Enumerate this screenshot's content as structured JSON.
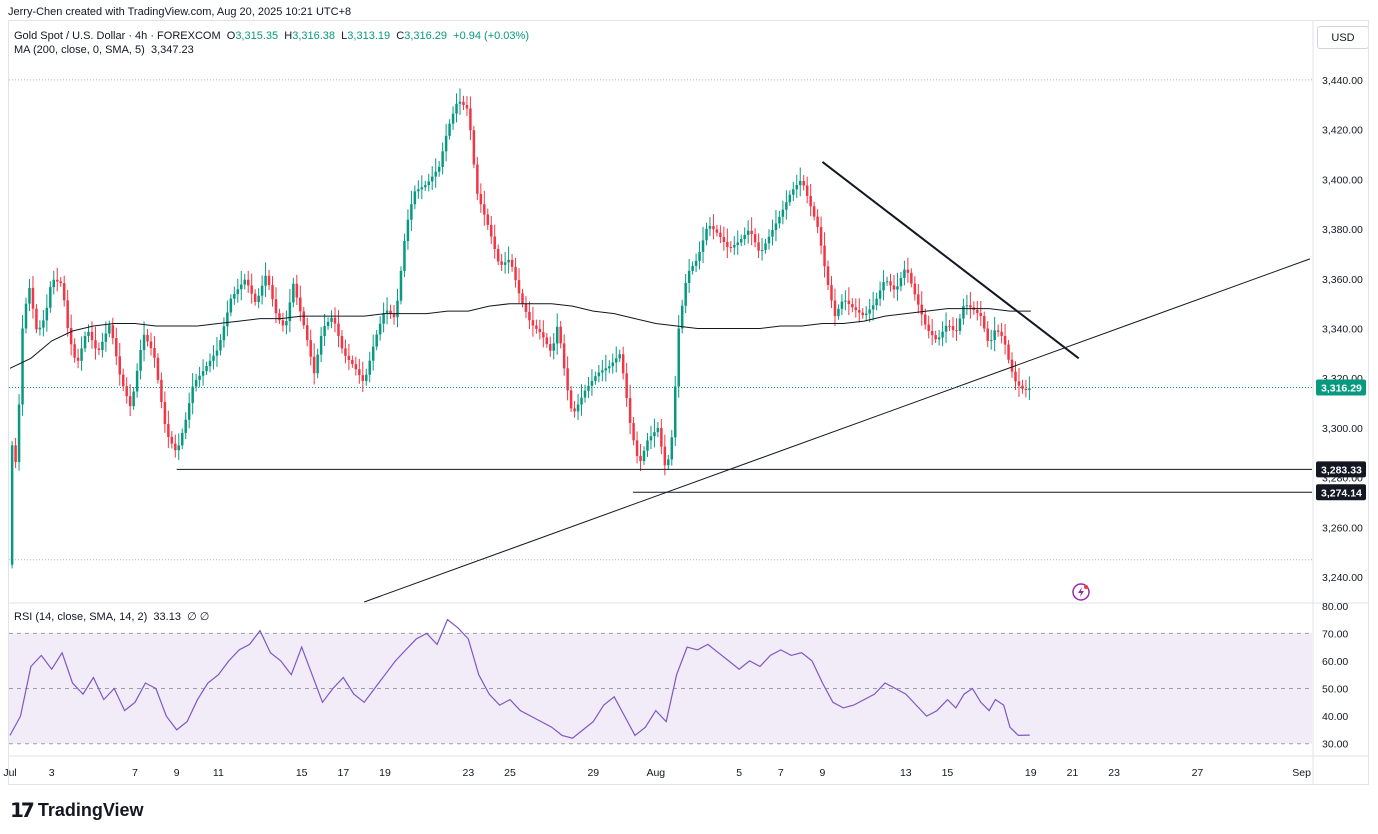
{
  "header": {
    "credit": "Jerry-Chen created with TradingView.com, Aug 20, 2025 10:21 UTC+8"
  },
  "symbol": {
    "name": "Gold Spot / U.S. Dollar · 4h · FOREXCOM",
    "o_label": "O",
    "o": "3,315.35",
    "h_label": "H",
    "h": "3,316.38",
    "l_label": "L",
    "l": "3,313.19",
    "c_label": "C",
    "c": "3,316.29",
    "change": "+0.94 (+0.03%)"
  },
  "ma_legend": {
    "label": "MA (200, close, 0, SMA, 5)",
    "value": "3,347.23"
  },
  "rsi_legend": {
    "label": "RSI (14, close, SMA, 14, 2)",
    "value": "33.13",
    "extra": "∅ ∅"
  },
  "currency_button": "USD",
  "brand": "TradingView",
  "colors": {
    "up": "#089981",
    "down": "#f23645",
    "ma": "#131722",
    "rsi": "#7e57c2",
    "rsi_band": "#ede7f6",
    "line": "#131722"
  },
  "chart_data": [
    {
      "type": "candlestick",
      "title": "Gold Spot / U.S. Dollar · 4h · FOREXCOM",
      "y_ticks": [
        3240,
        3260,
        3280,
        3300,
        3320,
        3340,
        3360,
        3380,
        3400,
        3420,
        3440
      ],
      "y_tick_labels": [
        "3,240.00",
        "3,260.00",
        "3,280.00",
        "3,300.00",
        "3,320.00",
        "3,340.00",
        "3,360.00",
        "3,380.00",
        "3,400.00",
        "3,420.00",
        "3,440.00"
      ],
      "ylim": [
        3230,
        3448
      ],
      "x_ticks": [
        {
          "label": "Jul",
          "day": 1
        },
        {
          "label": "3",
          "day": 3
        },
        {
          "label": "7",
          "day": 7
        },
        {
          "label": "9",
          "day": 9
        },
        {
          "label": "11",
          "day": 11
        },
        {
          "label": "15",
          "day": 15
        },
        {
          "label": "17",
          "day": 17
        },
        {
          "label": "19",
          "day": 19
        },
        {
          "label": "23",
          "day": 23
        },
        {
          "label": "25",
          "day": 25
        },
        {
          "label": "29",
          "day": 29
        },
        {
          "label": "Aug",
          "day": 32
        },
        {
          "label": "5",
          "day": 36
        },
        {
          "label": "7",
          "day": 38
        },
        {
          "label": "9",
          "day": 40
        },
        {
          "label": "13",
          "day": 44
        },
        {
          "label": "15",
          "day": 46
        },
        {
          "label": "19",
          "day": 50
        },
        {
          "label": "21",
          "day": 52
        },
        {
          "label": "23",
          "day": 54
        },
        {
          "label": "27",
          "day": 58
        },
        {
          "label": "Sep",
          "day": 63
        }
      ],
      "xlim_days": [
        0.95,
        63.5
      ],
      "price_path": [
        [
          0.95,
          3245
        ],
        [
          1.05,
          3295
        ],
        [
          1.3,
          3285
        ],
        [
          1.6,
          3340
        ],
        [
          1.9,
          3358
        ],
        [
          2.3,
          3338
        ],
        [
          2.7,
          3345
        ],
        [
          3.0,
          3360
        ],
        [
          3.5,
          3358
        ],
        [
          3.8,
          3338
        ],
        [
          4.2,
          3325
        ],
        [
          4.7,
          3340
        ],
        [
          5.2,
          3330
        ],
        [
          5.8,
          3342
        ],
        [
          6.3,
          3320
        ],
        [
          6.8,
          3308
        ],
        [
          7.4,
          3338
        ],
        [
          7.9,
          3330
        ],
        [
          8.5,
          3298
        ],
        [
          9.0,
          3290
        ],
        [
          9.4,
          3302
        ],
        [
          9.8,
          3318
        ],
        [
          10.2,
          3322
        ],
        [
          11.0,
          3332
        ],
        [
          11.6,
          3352
        ],
        [
          12.3,
          3360
        ],
        [
          12.8,
          3350
        ],
        [
          13.3,
          3362
        ],
        [
          13.8,
          3345
        ],
        [
          14.2,
          3340
        ],
        [
          14.6,
          3358
        ],
        [
          15.2,
          3338
        ],
        [
          15.6,
          3322
        ],
        [
          16.0,
          3340
        ],
        [
          16.5,
          3345
        ],
        [
          17.0,
          3330
        ],
        [
          17.5,
          3325
        ],
        [
          18.0,
          3318
        ],
        [
          18.5,
          3335
        ],
        [
          19.0,
          3348
        ],
        [
          19.5,
          3344
        ],
        [
          20.0,
          3380
        ],
        [
          20.4,
          3395
        ],
        [
          21.0,
          3398
        ],
        [
          21.6,
          3405
        ],
        [
          22.0,
          3420
        ],
        [
          22.5,
          3432
        ],
        [
          23.0,
          3428
        ],
        [
          23.4,
          3395
        ],
        [
          24.0,
          3380
        ],
        [
          24.5,
          3365
        ],
        [
          25.0,
          3368
        ],
        [
          25.5,
          3352
        ],
        [
          26.0,
          3342
        ],
        [
          26.5,
          3338
        ],
        [
          27.0,
          3330
        ],
        [
          27.3,
          3342
        ],
        [
          27.7,
          3318
        ],
        [
          28.0,
          3305
        ],
        [
          28.6,
          3315
        ],
        [
          29.2,
          3322
        ],
        [
          29.8,
          3325
        ],
        [
          30.3,
          3330
        ],
        [
          30.8,
          3300
        ],
        [
          31.2,
          3285
        ],
        [
          31.6,
          3295
        ],
        [
          32.1,
          3300
        ],
        [
          32.5,
          3282
        ],
        [
          32.8,
          3298
        ],
        [
          33.1,
          3340
        ],
        [
          33.5,
          3362
        ],
        [
          34.0,
          3368
        ],
        [
          34.5,
          3382
        ],
        [
          35.0,
          3378
        ],
        [
          35.5,
          3372
        ],
        [
          36.0,
          3375
        ],
        [
          36.5,
          3380
        ],
        [
          37.0,
          3370
        ],
        [
          37.5,
          3378
        ],
        [
          38.0,
          3386
        ],
        [
          38.5,
          3395
        ],
        [
          39.0,
          3400
        ],
        [
          39.4,
          3390
        ],
        [
          39.8,
          3380
        ],
        [
          40.2,
          3360
        ],
        [
          40.6,
          3345
        ],
        [
          41.0,
          3352
        ],
        [
          41.5,
          3348
        ],
        [
          42.0,
          3345
        ],
        [
          42.5,
          3350
        ],
        [
          43.0,
          3360
        ],
        [
          43.5,
          3355
        ],
        [
          44.0,
          3365
        ],
        [
          44.5,
          3352
        ],
        [
          45.0,
          3340
        ],
        [
          45.5,
          3335
        ],
        [
          46.0,
          3342
        ],
        [
          46.4,
          3338
        ],
        [
          46.8,
          3350
        ],
        [
          47.2,
          3348
        ],
        [
          47.6,
          3345
        ],
        [
          48.0,
          3333
        ],
        [
          48.3,
          3340
        ],
        [
          48.7,
          3336
        ],
        [
          49.0,
          3325
        ],
        [
          49.3,
          3318
        ],
        [
          49.7,
          3315
        ],
        [
          49.95,
          3316
        ]
      ],
      "ma200_path": [
        [
          1.0,
          3324
        ],
        [
          2.0,
          3328
        ],
        [
          3.0,
          3335
        ],
        [
          4.0,
          3339
        ],
        [
          5.0,
          3341
        ],
        [
          6.0,
          3342
        ],
        [
          7.0,
          3342
        ],
        [
          8.0,
          3341
        ],
        [
          9.0,
          3341
        ],
        [
          10.0,
          3341
        ],
        [
          11.0,
          3342
        ],
        [
          12.0,
          3343
        ],
        [
          13.0,
          3344
        ],
        [
          14.0,
          3344
        ],
        [
          15.0,
          3345
        ],
        [
          16.0,
          3345
        ],
        [
          17.0,
          3345
        ],
        [
          18.0,
          3345
        ],
        [
          19.0,
          3346
        ],
        [
          20.0,
          3346
        ],
        [
          21.0,
          3346
        ],
        [
          22.0,
          3347
        ],
        [
          23.0,
          3347
        ],
        [
          24.0,
          3349
        ],
        [
          25.0,
          3350
        ],
        [
          26.0,
          3350
        ],
        [
          27.0,
          3350
        ],
        [
          28.0,
          3349
        ],
        [
          29.0,
          3347
        ],
        [
          30.0,
          3346
        ],
        [
          31.0,
          3344
        ],
        [
          32.0,
          3342
        ],
        [
          33.0,
          3341
        ],
        [
          34.0,
          3340
        ],
        [
          35.0,
          3340
        ],
        [
          36.0,
          3340
        ],
        [
          37.0,
          3340
        ],
        [
          38.0,
          3341
        ],
        [
          39.0,
          3341
        ],
        [
          40.0,
          3342
        ],
        [
          41.0,
          3342
        ],
        [
          42.0,
          3343
        ],
        [
          43.0,
          3345
        ],
        [
          44.0,
          3346
        ],
        [
          45.0,
          3347
        ],
        [
          46.0,
          3348
        ],
        [
          47.0,
          3348
        ],
        [
          48.0,
          3348
        ],
        [
          49.0,
          3347
        ],
        [
          50.0,
          3347
        ]
      ],
      "horizontal_levels": [
        {
          "value": 3283.33,
          "label": "3,283.33",
          "from_day": 9.0
        },
        {
          "value": 3274.14,
          "label": "3,274.14",
          "from_day": 30.9
        }
      ],
      "dotted_levels": [
        3440,
        3247
      ],
      "trendlines": [
        {
          "name": "descending-resistance",
          "from": [
            40.0,
            3407
          ],
          "to": [
            52.3,
            3328
          ]
        },
        {
          "name": "ascending-support",
          "from": [
            18.0,
            3230
          ],
          "to": [
            63.4,
            3368
          ]
        }
      ],
      "last_price": {
        "value": 3316.29,
        "label": "3,316.29"
      }
    },
    {
      "type": "line",
      "title": "RSI (14, close, SMA, 14, 2)",
      "y_ticks": [
        30,
        40,
        50,
        60,
        70,
        80
      ],
      "y_tick_labels": [
        "30.00",
        "40.00",
        "50.00",
        "60.00",
        "70.00",
        "80.00"
      ],
      "ylim": [
        27,
        81
      ],
      "band": [
        30,
        70
      ],
      "midline": 50,
      "rsi_path": [
        [
          1.0,
          33
        ],
        [
          1.5,
          40
        ],
        [
          2.0,
          58
        ],
        [
          2.5,
          62
        ],
        [
          3.0,
          57
        ],
        [
          3.5,
          63
        ],
        [
          4.0,
          52
        ],
        [
          4.5,
          48
        ],
        [
          5.0,
          54
        ],
        [
          5.5,
          46
        ],
        [
          6.0,
          50
        ],
        [
          6.5,
          42
        ],
        [
          7.0,
          45
        ],
        [
          7.5,
          52
        ],
        [
          8.0,
          50
        ],
        [
          8.5,
          40
        ],
        [
          9.0,
          35
        ],
        [
          9.5,
          38
        ],
        [
          10.0,
          46
        ],
        [
          10.5,
          52
        ],
        [
          11.0,
          55
        ],
        [
          11.5,
          60
        ],
        [
          12.0,
          64
        ],
        [
          12.5,
          66
        ],
        [
          13.0,
          71
        ],
        [
          13.5,
          63
        ],
        [
          14.0,
          60
        ],
        [
          14.5,
          55
        ],
        [
          15.0,
          65
        ],
        [
          15.5,
          55
        ],
        [
          16.0,
          45
        ],
        [
          16.5,
          50
        ],
        [
          17.0,
          54
        ],
        [
          17.5,
          48
        ],
        [
          18.0,
          45
        ],
        [
          18.5,
          50
        ],
        [
          19.0,
          55
        ],
        [
          19.5,
          60
        ],
        [
          20.0,
          64
        ],
        [
          20.5,
          68
        ],
        [
          21.0,
          70
        ],
        [
          21.5,
          66
        ],
        [
          22.0,
          75
        ],
        [
          22.5,
          72
        ],
        [
          23.0,
          68
        ],
        [
          23.5,
          55
        ],
        [
          24.0,
          48
        ],
        [
          24.5,
          44
        ],
        [
          25.0,
          46
        ],
        [
          25.5,
          42
        ],
        [
          26.0,
          40
        ],
        [
          26.5,
          38
        ],
        [
          27.0,
          36
        ],
        [
          27.5,
          33
        ],
        [
          28.0,
          32
        ],
        [
          28.5,
          35
        ],
        [
          29.0,
          38
        ],
        [
          29.5,
          44
        ],
        [
          30.0,
          47
        ],
        [
          30.5,
          40
        ],
        [
          31.0,
          33
        ],
        [
          31.5,
          36
        ],
        [
          32.0,
          42
        ],
        [
          32.5,
          38
        ],
        [
          33.0,
          55
        ],
        [
          33.5,
          65
        ],
        [
          34.0,
          64
        ],
        [
          34.5,
          66
        ],
        [
          35.0,
          63
        ],
        [
          35.5,
          60
        ],
        [
          36.0,
          57
        ],
        [
          36.5,
          60
        ],
        [
          37.0,
          58
        ],
        [
          37.5,
          62
        ],
        [
          38.0,
          64
        ],
        [
          38.5,
          62
        ],
        [
          39.0,
          63
        ],
        [
          39.5,
          60
        ],
        [
          40.0,
          52
        ],
        [
          40.5,
          45
        ],
        [
          41.0,
          43
        ],
        [
          41.5,
          44
        ],
        [
          42.0,
          46
        ],
        [
          42.5,
          48
        ],
        [
          43.0,
          52
        ],
        [
          43.5,
          50
        ],
        [
          44.0,
          48
        ],
        [
          44.5,
          44
        ],
        [
          45.0,
          40
        ],
        [
          45.5,
          42
        ],
        [
          46.0,
          46
        ],
        [
          46.4,
          43
        ],
        [
          46.8,
          48
        ],
        [
          47.2,
          50
        ],
        [
          47.6,
          45
        ],
        [
          48.0,
          42
        ],
        [
          48.3,
          46
        ],
        [
          48.7,
          44
        ],
        [
          49.0,
          36
        ],
        [
          49.4,
          33
        ],
        [
          49.95,
          33.13
        ]
      ]
    }
  ]
}
